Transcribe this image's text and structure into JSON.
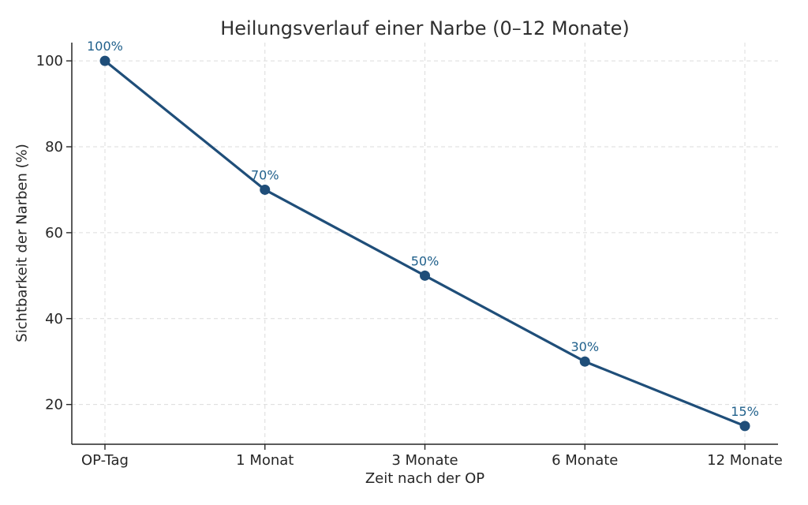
{
  "chart_data": {
    "type": "line",
    "title": "Heilungsverlauf einer Narbe (0–12 Monate)",
    "xlabel": "Zeit nach der OP",
    "ylabel": "Sichtbarkeit der Narben (%)",
    "categories": [
      "OP-Tag",
      "1 Monat",
      "3 Monate",
      "6 Monate",
      "12 Monate"
    ],
    "values": [
      100,
      70,
      50,
      30,
      15
    ],
    "point_labels": [
      "100%",
      "70%",
      "50%",
      "30%",
      "15%"
    ],
    "y_ticks": [
      20,
      40,
      60,
      80,
      100
    ],
    "y_tick_labels": [
      "20",
      "40",
      "60",
      "80",
      "100"
    ],
    "ylim": [
      10.75,
      104.25
    ],
    "grid": {
      "visible": true,
      "style": "dashed"
    },
    "legend": {
      "visible": false
    },
    "colors": {
      "line": "#1f4e79",
      "marker": "#1f4e79",
      "point_label": "#21618c",
      "title": "#2f2f2f",
      "axis_text": "#262626",
      "grid": "#dcdcdc",
      "spine": "#262626",
      "background": "#ffffff"
    }
  }
}
